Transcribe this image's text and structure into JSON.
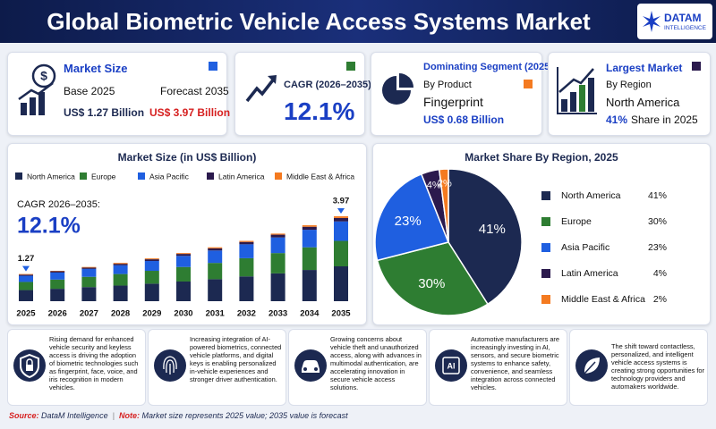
{
  "header": {
    "title": "Global Biometric Vehicle Access Systems Market",
    "logo": {
      "name": "DATAM",
      "tagline": "INTELLIGENCE"
    }
  },
  "cards": [
    {
      "title": "Market Size",
      "base_label": "Base 2025",
      "forecast_label": "Forecast 2035",
      "base_value": "US$ 1.27 Billion",
      "forecast_value": "US$ 3.97 Billion"
    },
    {
      "title": "CAGR (2026–2035)",
      "value": "12.1%"
    },
    {
      "title": "Dominating Segment (2025)",
      "subtitle": "By Product",
      "segment": "Fingerprint",
      "value": "US$ 0.68 Billion"
    },
    {
      "title": "Largest Market",
      "subtitle": "By Region",
      "region": "North America",
      "share": "41%",
      "share_text": "Share in 2025"
    }
  ],
  "chart_data": [
    {
      "type": "bar",
      "stacked": true,
      "title": "Market Size (in US$ Billion)",
      "annotation": {
        "label": "CAGR 2026–2035:",
        "value": "12.1%"
      },
      "categories": [
        "2025",
        "2026",
        "2027",
        "2028",
        "2029",
        "2030",
        "2031",
        "2032",
        "2033",
        "2034",
        "2035"
      ],
      "series": [
        {
          "name": "North America",
          "color": "#1c2951",
          "values": [
            0.52,
            0.58,
            0.66,
            0.73,
            0.82,
            0.92,
            1.03,
            1.16,
            1.3,
            1.46,
            1.63
          ]
        },
        {
          "name": "Europe",
          "color": "#2e7d32",
          "values": [
            0.38,
            0.43,
            0.48,
            0.54,
            0.6,
            0.68,
            0.76,
            0.85,
            0.95,
            1.06,
            1.19
          ]
        },
        {
          "name": "Asia Pacific",
          "color": "#1f5fe0",
          "values": [
            0.29,
            0.33,
            0.37,
            0.41,
            0.46,
            0.52,
            0.58,
            0.65,
            0.73,
            0.82,
            0.91
          ]
        },
        {
          "name": "Latin America",
          "color": "#2b1a4d",
          "values": [
            0.05,
            0.06,
            0.06,
            0.07,
            0.08,
            0.09,
            0.1,
            0.11,
            0.13,
            0.14,
            0.16
          ]
        },
        {
          "name": "Middle East & Africa",
          "color": "#f47a20",
          "values": [
            0.03,
            0.02,
            0.03,
            0.04,
            0.04,
            0.04,
            0.05,
            0.05,
            0.05,
            0.07,
            0.08
          ]
        }
      ],
      "total_labels": [
        {
          "category": "2025",
          "value": 1.27
        },
        {
          "category": "2035",
          "value": 3.97
        }
      ]
    },
    {
      "type": "pie",
      "title": "Market Share By Region, 2025",
      "categories": [
        "North America",
        "Europe",
        "Asia Pacific",
        "Latin America",
        "Middle East & Africa"
      ],
      "values": [
        41,
        30,
        23,
        4,
        2
      ],
      "value_labels": [
        "41%",
        "30%",
        "23%",
        "4%",
        "2%"
      ],
      "colors": [
        "#1c2951",
        "#2e7d32",
        "#1f5fe0",
        "#2b1a4d",
        "#f47a20"
      ]
    }
  ],
  "drivers": [
    {
      "text": "Rising demand for enhanced vehicle security and keyless access is driving the adoption of biometric technologies such as fingerprint, face, voice, and iris recognition in modern vehicles."
    },
    {
      "text": "Increasing integration of AI-powered biometrics, connected vehicle platforms, and digital keys is enabling personalized in-vehicle experiences and stronger driver authentication."
    },
    {
      "text": "Growing concerns about vehicle theft and unauthorized access, along with advances in multimodal authentication, are accelerating innovation in secure vehicle access solutions."
    },
    {
      "text": "Automotive manufacturers are increasingly investing in AI, sensors, and secure biometric systems to enhance safety, convenience, and seamless integration across connected vehicles.",
      "icon_label": "AI"
    },
    {
      "text": "The shift toward contactless, personalized, and intelligent vehicle access systems is creating strong opportunities for technology providers and automakers worldwide."
    }
  ],
  "footer": {
    "source_label": "Source:",
    "source": "DataM Intelligence",
    "note_label": "Note:",
    "note": "Market size represents 2025 value; 2035 value is forecast"
  }
}
